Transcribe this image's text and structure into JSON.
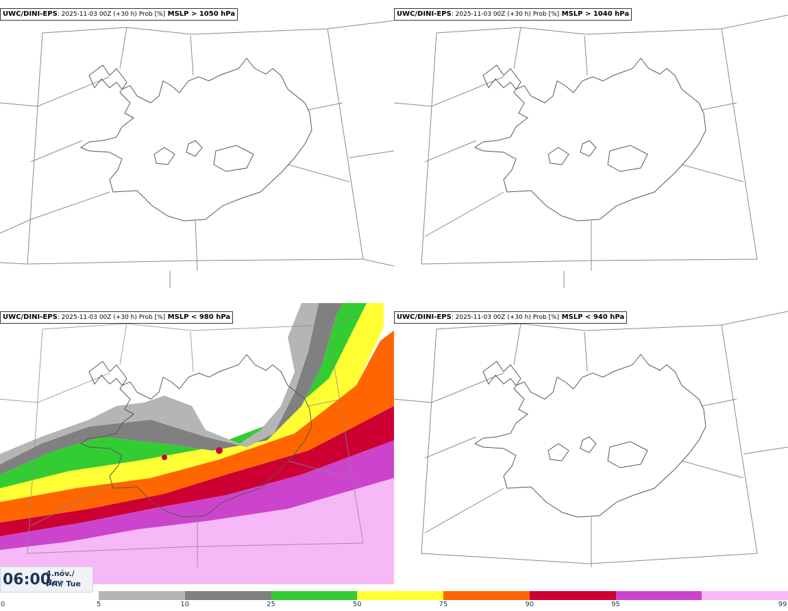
{
  "panels": [
    {
      "model": "UWC/DINI-EPS",
      "run_info": ": 2025-11-03 00Z (+30 h) Prob [%]",
      "variable": " MSLP > 1050 hPa"
    },
    {
      "model": "UWC/DINI-EPS",
      "run_info": ": 2025-11-03 00Z (+30 h) Prob [%]",
      "variable": " MSLP > 1040 hPa"
    },
    {
      "model": "UWC/DINI-EPS",
      "run_info": ": 2025-11-03 00Z (+30 h) Prob [%]",
      "variable": " MSLP < 980 hPa"
    },
    {
      "model": "UWC/DINI-EPS",
      "run_info": ": 2025-11-03 00Z (+30 h) Prob [%]",
      "variable": " MSLP < 940 hPa"
    }
  ],
  "valid_time": {
    "clock": "06:00",
    "date_line1": "4.nóv./ Nov",
    "date_line2": "Þri./ Tue"
  },
  "colorbar": {
    "ticks": [
      "0",
      "5",
      "10",
      "25",
      "50",
      "75",
      "90",
      "95",
      "99"
    ],
    "colors": [
      "#ffffff",
      "#b5b5b5",
      "#808080",
      "#33cc33",
      "#ffff33",
      "#ff6600",
      "#cc0033",
      "#cc44cc",
      "#f7b8f7"
    ]
  },
  "map_colors": {
    "coast": "#555555",
    "boundary": "#888888"
  }
}
